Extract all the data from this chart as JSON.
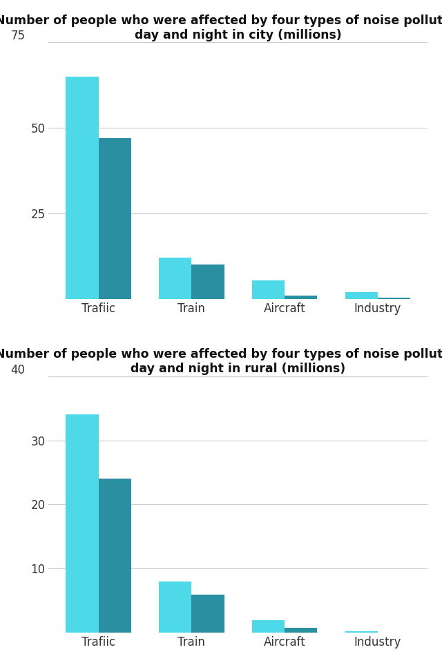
{
  "city": {
    "title_line1": "Number of people who were affected by four types of noise pollution in",
    "title_line2": "day and night in city (millions)",
    "categories": [
      "Trafiic",
      "Train",
      "Aircraft",
      "Industry"
    ],
    "day": [
      65,
      12,
      5.5,
      2.0
    ],
    "night": [
      47,
      10,
      1.0,
      0.3
    ],
    "ylim": [
      0,
      75
    ],
    "yticks": [
      0,
      25,
      50,
      75
    ]
  },
  "rural": {
    "title_line1": "Number of people who were affected by four types of noise pollution in",
    "title_line2": "day and night in rural (millions)",
    "categories": [
      "Trafiic",
      "Train",
      "Aircraft",
      "Industry"
    ],
    "day": [
      34,
      8,
      2.0,
      0.2
    ],
    "night": [
      24,
      6,
      0.8,
      0.05
    ],
    "ylim": [
      0,
      40
    ],
    "yticks": [
      0,
      10,
      20,
      30,
      40
    ]
  },
  "color_day": "#4DD9E8",
  "color_night": "#2A8FA0",
  "background_color": "#FFFFFF",
  "title_fontsize": 12.5,
  "tick_fontsize": 12,
  "bar_width": 0.35
}
